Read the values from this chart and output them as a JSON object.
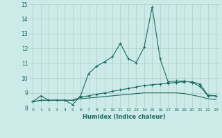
{
  "xlabel": "Humidex (Indice chaleur)",
  "x_values": [
    0,
    1,
    2,
    3,
    4,
    5,
    6,
    7,
    8,
    9,
    10,
    11,
    12,
    13,
    14,
    15,
    16,
    17,
    18,
    19,
    20,
    21,
    22,
    23
  ],
  "line1_y": [
    8.4,
    8.8,
    8.5,
    8.5,
    8.5,
    8.2,
    8.8,
    10.3,
    10.8,
    11.1,
    11.45,
    12.35,
    11.3,
    11.05,
    12.1,
    14.8,
    11.3,
    9.75,
    9.8,
    9.8,
    9.7,
    9.45,
    8.8,
    8.8
  ],
  "line2_y": [
    8.4,
    8.5,
    8.5,
    8.5,
    8.5,
    8.5,
    8.7,
    8.8,
    8.9,
    9.0,
    9.1,
    9.2,
    9.3,
    9.4,
    9.5,
    9.55,
    9.6,
    9.65,
    9.7,
    9.75,
    9.75,
    9.6,
    8.85,
    8.8
  ],
  "line3_y": [
    8.4,
    8.5,
    8.5,
    8.5,
    8.5,
    8.5,
    8.6,
    8.65,
    8.7,
    8.75,
    8.8,
    8.85,
    8.9,
    8.95,
    9.0,
    9.0,
    9.0,
    9.0,
    9.0,
    8.95,
    8.85,
    8.75,
    8.6,
    8.55
  ],
  "line_color": "#1a6b5e",
  "bg_color": "#cceae7",
  "plot_bg_color": "#cceae7",
  "grid_color": "#b0ceca",
  "ylim": [
    8,
    15
  ],
  "yticks": [
    8,
    9,
    10,
    11,
    12,
    13,
    14,
    15
  ],
  "xticks": [
    0,
    1,
    2,
    3,
    4,
    5,
    6,
    7,
    8,
    9,
    10,
    11,
    12,
    13,
    14,
    15,
    16,
    17,
    18,
    19,
    20,
    21,
    22,
    23
  ],
  "marker": "+",
  "markersize": 3,
  "linewidth": 0.8
}
